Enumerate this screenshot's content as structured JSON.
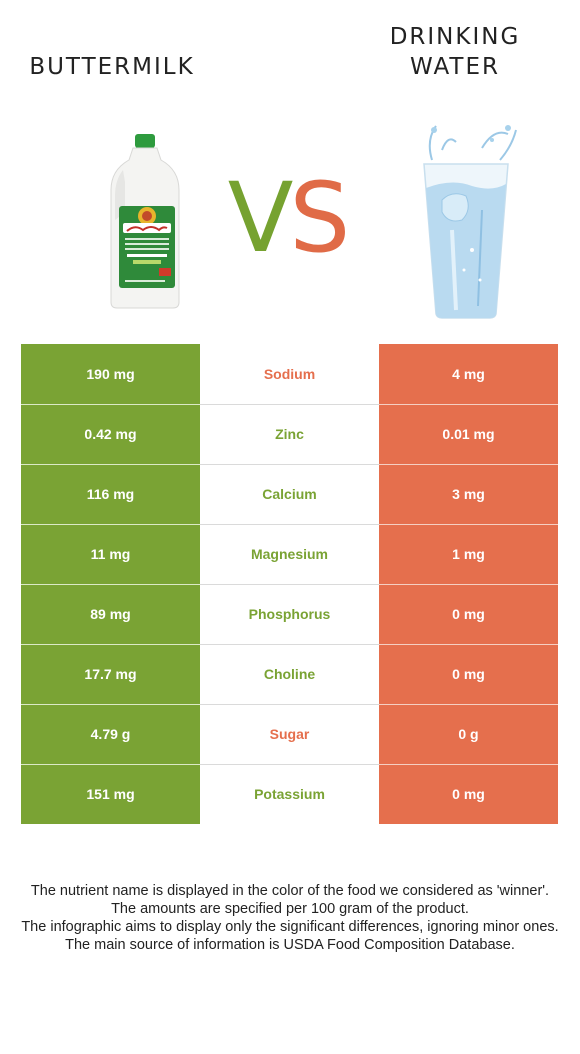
{
  "left_food": {
    "name": "BUTTERMILK",
    "image_icon": "buttermilk-jug-icon"
  },
  "right_food": {
    "name_line1": "DRINKING",
    "name_line2": "WATER",
    "image_icon": "water-glass-icon"
  },
  "vs": {
    "v": "V",
    "s": "S"
  },
  "rows": [
    {
      "left": "190 mg",
      "nutrient": "Sodium",
      "right": "4 mg",
      "winner": "right"
    },
    {
      "left": "0.42 mg",
      "nutrient": "Zinc",
      "right": "0.01 mg",
      "winner": "left"
    },
    {
      "left": "116 mg",
      "nutrient": "Calcium",
      "right": "3 mg",
      "winner": "left"
    },
    {
      "left": "11 mg",
      "nutrient": "Magnesium",
      "right": "1 mg",
      "winner": "left"
    },
    {
      "left": "89 mg",
      "nutrient": "Phosphorus",
      "right": "0 mg",
      "winner": "left"
    },
    {
      "left": "17.7 mg",
      "nutrient": "Choline",
      "right": "0 mg",
      "winner": "left"
    },
    {
      "left": "4.79 g",
      "nutrient": "Sugar",
      "right": "0 g",
      "winner": "right"
    },
    {
      "left": "151 mg",
      "nutrient": "Potassium",
      "right": "0 mg",
      "winner": "left"
    }
  ],
  "notes": {
    "line1": "The nutrient name is displayed in the color of the food we considered as 'winner'.",
    "line2": "The amounts are specified per 100 gram of the product.",
    "line3": "The infographic aims to display only the significant differences, ignoring minor ones.",
    "line4": "The main source of information is USDA Food Composition Database."
  },
  "colors": {
    "left_accent": "#7aa334",
    "right_accent": "#e56f4d"
  }
}
